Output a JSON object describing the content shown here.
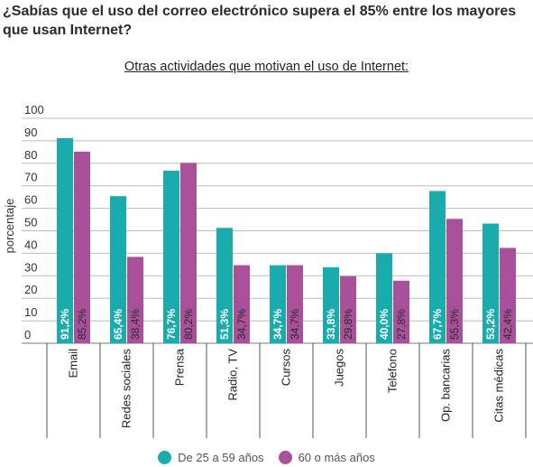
{
  "headline": "¿Sabías que el uso del correo electrónico supera el 85% entre los mayores que usan Internet?",
  "chart_data": {
    "type": "bar",
    "title": "Otras actividades que motivan el uso de Internet:",
    "ylabel": "porcentaje",
    "xlabel": "",
    "ylim": [
      0,
      100
    ],
    "yticks": [
      0,
      10,
      20,
      30,
      40,
      50,
      60,
      70,
      80,
      90,
      100
    ],
    "grid": true,
    "legend_position": "bottom",
    "categories": [
      "Email",
      "Redes sociales",
      "Prensa",
      "Radio, TV",
      "Cursos",
      "Juegos",
      "Telefono",
      "Op. bancarias",
      "Citas médicas"
    ],
    "series": [
      {
        "name": "De 25 a 59 años",
        "color": "#1aacac",
        "values": [
          91.2,
          65.4,
          76.7,
          51.3,
          34.7,
          33.8,
          40.0,
          67.7,
          53.2
        ],
        "labels": [
          "91,2%",
          "65,4%",
          "76,7%",
          "51,3%",
          "34,7%",
          "33,8%",
          "40,0%",
          "67,7%",
          "53,2%"
        ]
      },
      {
        "name": "60 o más años",
        "color": "#a8519a",
        "values": [
          85.2,
          38.4,
          80.2,
          34.7,
          34.7,
          29.8,
          27.8,
          55.3,
          42.4
        ],
        "labels": [
          "85,2%",
          "38,4%",
          "80,2%",
          "34,7%",
          "34,7%",
          "29,8%",
          "27,8%",
          "55,3%",
          "42,4%"
        ]
      }
    ]
  }
}
